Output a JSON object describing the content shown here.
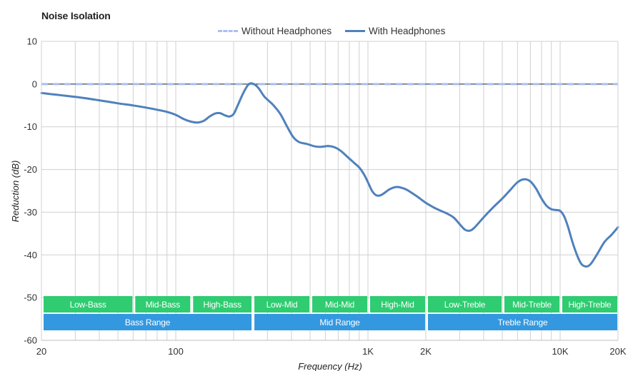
{
  "chart_data": {
    "type": "line",
    "title": "Noise Isolation",
    "xlabel": "Frequency (Hz)",
    "ylabel": "Reduction (dB)",
    "x_scale": "log",
    "xlim": [
      20,
      20000
    ],
    "ylim": [
      -60,
      10
    ],
    "y_ticks": [
      10,
      0,
      -10,
      -20,
      -30,
      -40,
      -50,
      -60
    ],
    "x_tick_labels": [
      {
        "value": 20,
        "label": "20"
      },
      {
        "value": 100,
        "label": "100"
      },
      {
        "value": 1000,
        "label": "1K"
      },
      {
        "value": 2000,
        "label": "2K"
      },
      {
        "value": 10000,
        "label": "10K"
      },
      {
        "value": 20000,
        "label": "20K"
      }
    ],
    "grid": true,
    "legend_position": "top-center",
    "series": [
      {
        "name": "Without Headphones",
        "style": "dashed",
        "color": "#a9bff3",
        "points": [
          [
            20,
            0
          ],
          [
            20000,
            0
          ]
        ]
      },
      {
        "name": "With Headphones",
        "style": "solid",
        "color": "#4f81bd",
        "points": [
          [
            20,
            -2.1
          ],
          [
            30,
            -3.0
          ],
          [
            40,
            -3.8
          ],
          [
            50,
            -4.5
          ],
          [
            60,
            -5.0
          ],
          [
            70,
            -5.5
          ],
          [
            80,
            -6.0
          ],
          [
            90,
            -6.5
          ],
          [
            100,
            -7.2
          ],
          [
            110,
            -8.2
          ],
          [
            120,
            -8.8
          ],
          [
            130,
            -9.0
          ],
          [
            140,
            -8.6
          ],
          [
            150,
            -7.6
          ],
          [
            160,
            -6.9
          ],
          [
            170,
            -6.8
          ],
          [
            180,
            -7.3
          ],
          [
            190,
            -7.6
          ],
          [
            200,
            -7.0
          ],
          [
            210,
            -5.0
          ],
          [
            225,
            -2.0
          ],
          [
            240,
            0.0
          ],
          [
            255,
            0.0
          ],
          [
            270,
            -1.0
          ],
          [
            290,
            -3.0
          ],
          [
            320,
            -4.8
          ],
          [
            350,
            -7.0
          ],
          [
            380,
            -10.0
          ],
          [
            410,
            -12.5
          ],
          [
            440,
            -13.6
          ],
          [
            480,
            -14.0
          ],
          [
            530,
            -14.6
          ],
          [
            570,
            -14.7
          ],
          [
            620,
            -14.5
          ],
          [
            670,
            -14.8
          ],
          [
            720,
            -15.6
          ],
          [
            780,
            -17.0
          ],
          [
            850,
            -18.5
          ],
          [
            900,
            -19.5
          ],
          [
            950,
            -21.0
          ],
          [
            1000,
            -23.0
          ],
          [
            1050,
            -25.0
          ],
          [
            1100,
            -26.0
          ],
          [
            1150,
            -26.1
          ],
          [
            1200,
            -25.7
          ],
          [
            1300,
            -24.6
          ],
          [
            1400,
            -24.1
          ],
          [
            1500,
            -24.3
          ],
          [
            1600,
            -24.8
          ],
          [
            1800,
            -26.3
          ],
          [
            2000,
            -27.8
          ],
          [
            2200,
            -28.9
          ],
          [
            2400,
            -29.7
          ],
          [
            2600,
            -30.4
          ],
          [
            2800,
            -31.3
          ],
          [
            3000,
            -32.8
          ],
          [
            3200,
            -34.1
          ],
          [
            3400,
            -34.3
          ],
          [
            3600,
            -33.5
          ],
          [
            4000,
            -31.2
          ],
          [
            4500,
            -28.8
          ],
          [
            5000,
            -26.8
          ],
          [
            5500,
            -24.8
          ],
          [
            6000,
            -23.0
          ],
          [
            6500,
            -22.3
          ],
          [
            7000,
            -22.8
          ],
          [
            7500,
            -24.5
          ],
          [
            8000,
            -26.8
          ],
          [
            8500,
            -28.5
          ],
          [
            9000,
            -29.3
          ],
          [
            9500,
            -29.5
          ],
          [
            10000,
            -29.7
          ],
          [
            10500,
            -31.0
          ],
          [
            11000,
            -33.5
          ],
          [
            11500,
            -36.5
          ],
          [
            12000,
            -39.0
          ],
          [
            12500,
            -41.0
          ],
          [
            13000,
            -42.3
          ],
          [
            13800,
            -42.7
          ],
          [
            14500,
            -42.0
          ],
          [
            15500,
            -40.0
          ],
          [
            17000,
            -37.0
          ],
          [
            18500,
            -35.3
          ],
          [
            20000,
            -33.5
          ]
        ]
      }
    ],
    "annotation_bands": [
      {
        "label": "Low-Bass",
        "from": 20,
        "to": 60,
        "row": 1,
        "color": "#2fcc71"
      },
      {
        "label": "Mid-Bass",
        "from": 60,
        "to": 120,
        "row": 1,
        "color": "#2fcc71"
      },
      {
        "label": "High-Bass",
        "from": 120,
        "to": 250,
        "row": 1,
        "color": "#2fcc71"
      },
      {
        "label": "Low-Mid",
        "from": 250,
        "to": 500,
        "row": 1,
        "color": "#2fcc71"
      },
      {
        "label": "Mid-Mid",
        "from": 500,
        "to": 1000,
        "row": 1,
        "color": "#2fcc71"
      },
      {
        "label": "High-Mid",
        "from": 1000,
        "to": 2000,
        "row": 1,
        "color": "#2fcc71"
      },
      {
        "label": "Low-Treble",
        "from": 2000,
        "to": 5000,
        "row": 1,
        "color": "#2fcc71"
      },
      {
        "label": "Mid-Treble",
        "from": 5000,
        "to": 10000,
        "row": 1,
        "color": "#2fcc71"
      },
      {
        "label": "High-Treble",
        "from": 10000,
        "to": 20000,
        "row": 1,
        "color": "#2fcc71"
      },
      {
        "label": "Bass Range",
        "from": 20,
        "to": 250,
        "row": 2,
        "color": "#3498e0"
      },
      {
        "label": "Mid Range",
        "from": 250,
        "to": 2000,
        "row": 2,
        "color": "#3498e0"
      },
      {
        "label": "Treble Range",
        "from": 2000,
        "to": 20000,
        "row": 2,
        "color": "#3498e0"
      }
    ]
  }
}
